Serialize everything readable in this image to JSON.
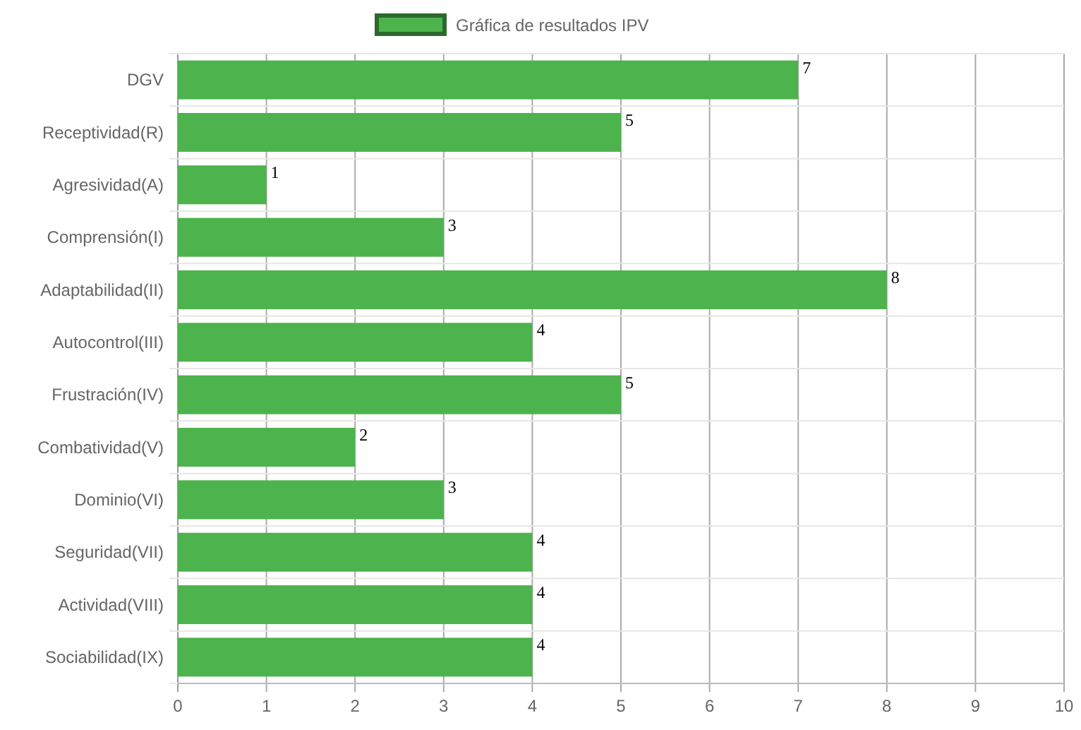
{
  "chart_data": {
    "type": "bar",
    "orientation": "horizontal",
    "categories": [
      "DGV",
      "Receptividad(R)",
      "Agresividad(A)",
      "Comprensión(I)",
      "Adaptabilidad(II)",
      "Autocontrol(III)",
      "Frustración(IV)",
      "Combatividad(V)",
      "Dominio(VI)",
      "Seguridad(VII)",
      "Actividad(VIII)",
      "Sociabilidad(IX)"
    ],
    "series": [
      {
        "name": "Gráfica de resultados IPV",
        "color": "#4db34d",
        "values": [
          7,
          5,
          1,
          3,
          8,
          4,
          5,
          2,
          3,
          4,
          4,
          4
        ]
      }
    ],
    "xlim": [
      0,
      10
    ],
    "xticks": [
      0,
      1,
      2,
      3,
      4,
      5,
      6,
      7,
      8,
      9,
      10
    ],
    "grid": true,
    "legend": "top",
    "data_labels": true
  }
}
